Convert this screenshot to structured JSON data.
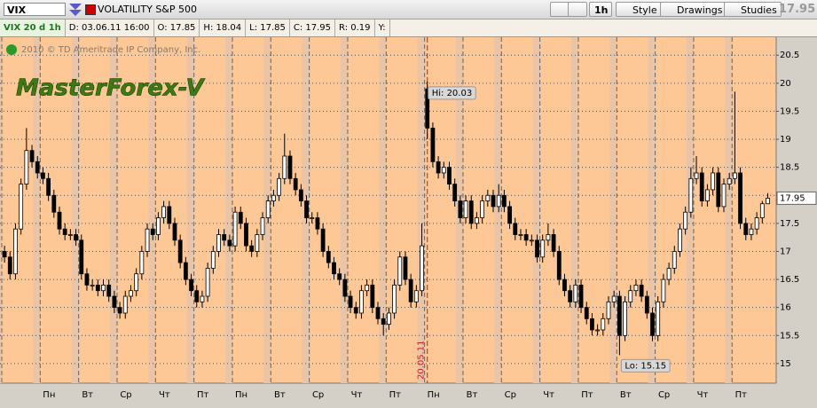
{
  "toolbar": {
    "symbol": "VIX",
    "description": "VOLATILITY S&P 500",
    "interval": "1h",
    "style": "Style",
    "drawings": "Drawings",
    "studies": "Studies",
    "last": "17.95"
  },
  "info_bar": [
    "VIX 20 d 1h",
    "D: 03.06.11 16:00",
    "O: 17.85",
    "H: 18.04",
    "L: 17.85",
    "C: 17.95",
    "R: 0.19",
    "Y:"
  ],
  "chart_data": {
    "type": "candlestick",
    "copyright": "2010 © TD Ameritrade IP Company, Inc.",
    "watermark": "MasterForex-V",
    "days": [
      null,
      "Пн",
      "Вт",
      "Ср",
      "Чт",
      "Пт",
      "Пн",
      "Вт",
      "Ср",
      "Чт",
      "Пт",
      "Пн",
      "Вт",
      "Ср",
      "Чт",
      "Пт",
      "Вт",
      "Ср",
      "Чт",
      "Пт"
    ],
    "open": [
      17.0,
      16.9,
      16.6,
      17.4,
      18.2,
      18.8,
      18.6,
      18.4,
      18.3,
      18.0,
      17.7,
      17.4,
      17.3,
      17.3,
      17.2,
      16.6,
      16.4,
      16.4,
      16.3,
      16.4,
      16.2,
      16.0,
      15.9,
      16.2,
      16.3,
      16.6,
      17.0,
      17.4,
      17.3,
      17.6,
      17.8,
      17.5,
      17.2,
      16.8,
      16.5,
      16.3,
      16.1,
      16.2,
      16.7,
      17.0,
      17.3,
      17.2,
      17.1,
      17.7,
      17.5,
      17.1,
      17.0,
      17.3,
      17.6,
      17.9,
      18.0,
      18.3,
      18.7,
      18.3,
      18.1,
      17.9,
      17.6,
      17.6,
      17.4,
      17.0,
      16.8,
      16.6,
      16.5,
      16.2,
      16.0,
      15.9,
      16.3,
      16.4,
      16.0,
      15.8,
      15.7,
      15.9,
      16.4,
      16.9,
      16.5,
      16.1,
      16.3,
      19.9,
      19.2,
      18.6,
      18.4,
      18.5,
      18.2,
      17.9,
      17.6,
      17.9,
      17.5,
      17.6,
      17.9,
      18.0,
      17.8,
      18.0,
      17.8,
      17.5,
      17.3,
      17.3,
      17.2,
      17.2,
      16.9,
      17.2,
      17.3,
      17.0,
      16.5,
      16.3,
      16.1,
      16.4,
      16.0,
      15.8,
      15.6,
      15.6,
      15.8,
      16.1,
      16.2,
      15.5,
      16.1,
      16.3,
      16.4,
      16.2,
      15.9,
      15.5,
      16.1,
      16.5,
      16.7,
      17.0,
      17.4,
      17.7,
      18.3,
      18.4,
      17.9,
      18.1,
      18.4,
      17.8,
      18.2,
      18.3,
      18.4,
      17.5,
      17.3,
      17.4,
      17.6,
      17.85
    ],
    "high": [
      17.1,
      17.0,
      17.5,
      18.3,
      19.2,
      18.9,
      18.7,
      18.5,
      18.4,
      18.1,
      17.8,
      17.5,
      17.4,
      17.4,
      17.3,
      16.7,
      16.5,
      16.5,
      16.5,
      16.5,
      16.3,
      16.1,
      16.3,
      16.4,
      16.7,
      17.1,
      17.5,
      17.5,
      17.7,
      17.9,
      17.9,
      17.6,
      17.3,
      16.9,
      16.6,
      16.4,
      16.3,
      16.8,
      17.1,
      17.4,
      17.4,
      17.3,
      17.8,
      17.8,
      17.6,
      17.2,
      17.4,
      17.7,
      18.0,
      18.1,
      18.4,
      19.1,
      18.8,
      18.4,
      18.2,
      18.0,
      17.7,
      17.7,
      17.5,
      17.1,
      16.9,
      16.7,
      16.6,
      16.3,
      16.1,
      16.4,
      16.5,
      16.5,
      16.1,
      15.9,
      16.0,
      16.5,
      17.0,
      17.0,
      16.6,
      16.4,
      17.5,
      20.03,
      19.3,
      18.7,
      18.6,
      18.6,
      18.3,
      18.0,
      18.0,
      18.0,
      17.7,
      18.0,
      18.1,
      18.1,
      18.2,
      18.1,
      17.9,
      17.6,
      17.4,
      17.4,
      17.3,
      17.3,
      17.3,
      17.5,
      17.4,
      17.1,
      16.6,
      16.4,
      16.5,
      16.5,
      16.1,
      15.9,
      15.7,
      15.9,
      16.2,
      16.3,
      16.3,
      16.2,
      16.4,
      16.5,
      16.5,
      16.3,
      16.0,
      16.2,
      16.6,
      16.8,
      17.1,
      17.5,
      17.8,
      18.5,
      18.7,
      18.5,
      18.2,
      18.5,
      18.5,
      18.3,
      18.4,
      19.85,
      18.5,
      17.6,
      17.5,
      17.7,
      17.9,
      18.04
    ],
    "low": [
      16.8,
      16.5,
      16.5,
      17.3,
      18.1,
      18.5,
      18.3,
      18.2,
      17.9,
      17.6,
      17.3,
      17.2,
      17.2,
      17.1,
      16.5,
      16.3,
      16.3,
      16.2,
      16.2,
      16.1,
      15.9,
      15.8,
      15.8,
      16.1,
      16.2,
      16.5,
      16.9,
      17.2,
      17.2,
      17.5,
      17.4,
      17.1,
      16.7,
      16.4,
      16.2,
      16.0,
      16.0,
      16.1,
      16.6,
      16.9,
      17.1,
      17.0,
      17.0,
      17.4,
      17.0,
      16.9,
      16.9,
      17.2,
      17.5,
      17.8,
      17.9,
      18.2,
      18.2,
      18.0,
      17.8,
      17.5,
      17.5,
      17.3,
      16.9,
      16.7,
      16.5,
      16.4,
      16.1,
      15.9,
      15.8,
      15.8,
      16.2,
      15.9,
      15.7,
      15.5,
      15.6,
      15.8,
      16.3,
      16.4,
      16.0,
      16.0,
      16.2,
      19.0,
      18.5,
      18.3,
      18.3,
      18.1,
      17.8,
      17.5,
      17.5,
      17.4,
      17.4,
      17.5,
      17.8,
      17.7,
      17.7,
      17.7,
      17.4,
      17.2,
      17.2,
      17.1,
      17.1,
      16.8,
      16.8,
      17.1,
      16.9,
      16.4,
      16.2,
      16.0,
      16.0,
      15.9,
      15.7,
      15.5,
      15.5,
      15.5,
      15.7,
      16.0,
      15.15,
      15.4,
      16.0,
      16.2,
      16.1,
      15.8,
      15.4,
      15.4,
      16.0,
      16.4,
      16.6,
      16.9,
      17.3,
      17.6,
      18.2,
      17.8,
      17.8,
      18.0,
      17.7,
      17.7,
      18.1,
      18.2,
      17.4,
      17.2,
      17.2,
      17.3,
      17.5,
      17.85
    ],
    "close": [
      16.9,
      16.6,
      17.4,
      18.2,
      18.8,
      18.6,
      18.4,
      18.3,
      18.0,
      17.7,
      17.4,
      17.3,
      17.3,
      17.2,
      16.6,
      16.4,
      16.4,
      16.3,
      16.4,
      16.2,
      16.0,
      15.9,
      16.2,
      16.3,
      16.6,
      17.0,
      17.4,
      17.3,
      17.6,
      17.8,
      17.5,
      17.2,
      16.8,
      16.5,
      16.3,
      16.1,
      16.2,
      16.7,
      17.0,
      17.3,
      17.2,
      17.1,
      17.7,
      17.5,
      17.1,
      17.0,
      17.3,
      17.6,
      17.9,
      18.0,
      18.3,
      18.7,
      18.3,
      18.1,
      17.9,
      17.6,
      17.6,
      17.4,
      17.0,
      16.8,
      16.6,
      16.5,
      16.2,
      16.0,
      15.9,
      16.3,
      16.4,
      16.0,
      15.8,
      15.7,
      15.9,
      16.4,
      16.9,
      16.5,
      16.1,
      16.3,
      17.1,
      19.2,
      18.6,
      18.4,
      18.5,
      18.2,
      17.9,
      17.6,
      17.9,
      17.5,
      17.6,
      17.9,
      18.0,
      17.8,
      18.0,
      17.8,
      17.5,
      17.3,
      17.3,
      17.2,
      17.2,
      16.9,
      17.2,
      17.3,
      17.0,
      16.5,
      16.3,
      16.1,
      16.4,
      16.0,
      15.8,
      15.6,
      15.6,
      15.8,
      16.1,
      16.2,
      15.5,
      16.1,
      16.3,
      16.4,
      16.2,
      15.9,
      15.5,
      16.1,
      16.5,
      16.7,
      17.0,
      17.4,
      17.7,
      18.3,
      18.4,
      17.9,
      18.1,
      18.4,
      17.8,
      18.2,
      18.3,
      18.4,
      17.5,
      17.3,
      17.4,
      17.6,
      17.85,
      17.95
    ],
    "ylim": [
      14.65,
      20.82
    ],
    "yticks": [
      15,
      15.5,
      16,
      16.5,
      17,
      17.5,
      18,
      18.5,
      19,
      19.5,
      20,
      20.5
    ],
    "grid": true,
    "up_color": "#ffffff",
    "down_color": "#000000",
    "background": "#fdc796",
    "annotations": {
      "high": "Hi: 20.03",
      "low": "Lo: 15.15",
      "last": "17.95",
      "marker_date": "20.05.11"
    }
  }
}
